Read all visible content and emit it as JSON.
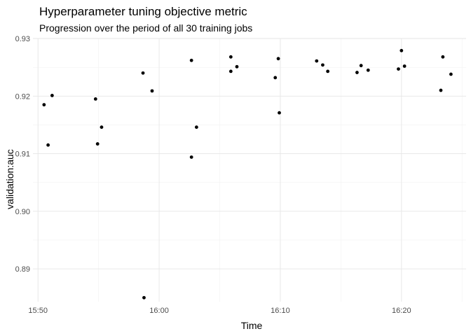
{
  "chart_data": {
    "type": "scatter",
    "title": "Hyperparameter tuning objective metric",
    "subtitle": "Progression over the period of all 30 training jobs",
    "xlabel": "Time",
    "ylabel": "validation:auc",
    "xlim": [
      "15:49:35",
      "16:25:20"
    ],
    "ylim": [
      0.8843,
      0.93
    ],
    "x_ticks": [
      "15:50",
      "16:00",
      "16:10",
      "16:20"
    ],
    "y_ticks": [
      "0.89",
      "0.90",
      "0.91",
      "0.92",
      "0.93"
    ],
    "grid": true,
    "point_color": "#000000",
    "points": [
      {
        "x": "15:50:30",
        "y": 0.9185
      },
      {
        "x": "15:50:50",
        "y": 0.9115
      },
      {
        "x": "15:51:10",
        "y": 0.9201
      },
      {
        "x": "15:54:45",
        "y": 0.9195
      },
      {
        "x": "15:54:55",
        "y": 0.9117
      },
      {
        "x": "15:55:15",
        "y": 0.9146
      },
      {
        "x": "15:58:40",
        "y": 0.924
      },
      {
        "x": "15:58:45",
        "y": 0.885
      },
      {
        "x": "15:59:25",
        "y": 0.9209
      },
      {
        "x": "16:02:40",
        "y": 0.9262
      },
      {
        "x": "16:02:40",
        "y": 0.9094
      },
      {
        "x": "16:03:05",
        "y": 0.9146
      },
      {
        "x": "16:05:55",
        "y": 0.9268
      },
      {
        "x": "16:05:55",
        "y": 0.9243
      },
      {
        "x": "16:06:25",
        "y": 0.9251
      },
      {
        "x": "16:09:35",
        "y": 0.9232
      },
      {
        "x": "16:09:50",
        "y": 0.9265
      },
      {
        "x": "16:09:55",
        "y": 0.9171
      },
      {
        "x": "16:13:00",
        "y": 0.9261
      },
      {
        "x": "16:13:30",
        "y": 0.9254
      },
      {
        "x": "16:13:55",
        "y": 0.9243
      },
      {
        "x": "16:16:20",
        "y": 0.9241
      },
      {
        "x": "16:16:40",
        "y": 0.9253
      },
      {
        "x": "16:17:15",
        "y": 0.9245
      },
      {
        "x": "16:19:45",
        "y": 0.9247
      },
      {
        "x": "16:20:00",
        "y": 0.9279
      },
      {
        "x": "16:20:15",
        "y": 0.9252
      },
      {
        "x": "16:23:15",
        "y": 0.921
      },
      {
        "x": "16:23:25",
        "y": 0.9268
      },
      {
        "x": "16:24:05",
        "y": 0.9238
      }
    ]
  }
}
